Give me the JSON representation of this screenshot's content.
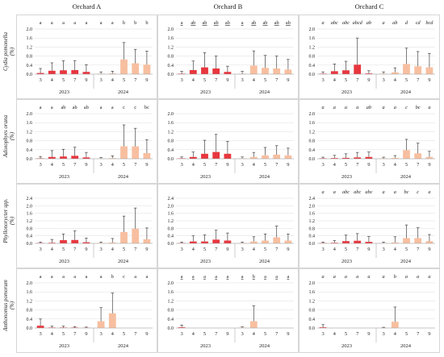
{
  "orchards": [
    "Orchard A",
    "Orchard B",
    "Orchard C"
  ],
  "species": [
    {
      "name": "Cydia pomonella",
      "unit": "(%)"
    },
    {
      "name": "Adoxophyes orana",
      "unit": "(%)"
    },
    {
      "name": "Phyllonorycter spp.",
      "unit": "(%)"
    },
    {
      "name": "Anthonomus pomorum",
      "unit": "(%)"
    }
  ],
  "years": [
    "2023",
    "2024"
  ],
  "x_categories": [
    "3",
    "4",
    "5",
    "7",
    "9",
    "3",
    "4",
    "5",
    "7",
    "9"
  ],
  "colors": {
    "2023": "#e8363e",
    "2024": "#f7bfa0",
    "error_bar": "#444444",
    "grid": "#dddddd",
    "border": "#bbbbbb"
  },
  "chart_data": {
    "type": "bar",
    "layout": "grid 4 rows (species) x 3 columns (orchards)",
    "y_tick_labels": [
      "0.0",
      "0.4",
      "0.8",
      "1.2",
      "1.6",
      "2.0",
      "2.4"
    ],
    "panels": [
      {
        "species": "Cydia pomonella",
        "orchard": "Orchard A",
        "ylim": [
          0,
          2.0
        ],
        "letters": [
          "a",
          "a",
          "a",
          "a",
          "a",
          "a",
          "a",
          "b",
          "b",
          "b"
        ],
        "letter_style": "normal",
        "values": [
          0.05,
          0.15,
          0.17,
          0.18,
          0.1,
          0.02,
          0.03,
          0.65,
          0.48,
          0.42
        ],
        "errors": [
          0.2,
          0.35,
          0.42,
          0.42,
          0.32,
          0.08,
          0.1,
          0.75,
          0.62,
          0.6
        ]
      },
      {
        "species": "Cydia pomonella",
        "orchard": "Orchard B",
        "ylim": [
          0,
          2.0
        ],
        "letters": [
          "a",
          "ab",
          "ab",
          "ab",
          "ab",
          "a",
          "ab",
          "ab",
          "ab",
          "ab"
        ],
        "letter_style": "underline",
        "values": [
          0.02,
          0.18,
          0.3,
          0.25,
          0.1,
          0.02,
          0.38,
          0.28,
          0.25,
          0.2
        ],
        "errors": [
          0.1,
          0.4,
          0.65,
          0.55,
          0.25,
          0.1,
          0.65,
          0.55,
          0.55,
          0.45
        ]
      },
      {
        "species": "Cydia pomonella",
        "orchard": "Orchard C",
        "ylim": [
          0,
          2.0
        ],
        "letters": [
          "a",
          "abc",
          "abc",
          "abcd",
          "ab",
          "a",
          "ab",
          "d",
          "cd",
          "bcd"
        ],
        "letter_style": "italic",
        "values": [
          0.02,
          0.13,
          0.17,
          0.42,
          0.03,
          0.02,
          0.08,
          0.45,
          0.35,
          0.3
        ],
        "errors": [
          0.08,
          0.32,
          0.4,
          1.18,
          0.12,
          0.08,
          0.2,
          0.7,
          0.65,
          0.62
        ]
      },
      {
        "species": "Adoxophyes orana",
        "orchard": "Orchard A",
        "ylim": [
          0,
          2.0
        ],
        "letters": [
          "a",
          "a",
          "ab",
          "ab",
          "ab",
          "a",
          "a",
          "c",
          "c",
          "bc"
        ],
        "letter_style": "normal",
        "values": [
          0.02,
          0.08,
          0.1,
          0.13,
          0.06,
          0.01,
          0.03,
          0.55,
          0.55,
          0.25
        ],
        "errors": [
          0.08,
          0.28,
          0.32,
          0.38,
          0.22,
          0.05,
          0.1,
          0.95,
          0.8,
          0.6
        ]
      },
      {
        "species": "Adoxophyes orana",
        "orchard": "Orchard B",
        "ylim": [
          0,
          2.0
        ],
        "letters": [
          "",
          "",
          "",
          "",
          "",
          "",
          "",
          "",
          "",
          ""
        ],
        "letter_style": "none",
        "values": [
          0.02,
          0.08,
          0.22,
          0.3,
          0.22,
          0.02,
          0.08,
          0.15,
          0.18,
          0.15
        ],
        "errors": [
          0.06,
          0.22,
          0.6,
          0.78,
          0.55,
          0.06,
          0.2,
          0.35,
          0.4,
          0.32
        ]
      },
      {
        "species": "Adoxophyes orana",
        "orchard": "Orchard C",
        "ylim": [
          0,
          2.0
        ],
        "letters": [
          "a",
          "a",
          "a",
          "a",
          "ab",
          "a",
          "a",
          "c",
          "bc",
          "a"
        ],
        "letter_style": "italic",
        "values": [
          0.02,
          0.03,
          0.04,
          0.06,
          0.08,
          0.02,
          0.04,
          0.38,
          0.24,
          0.08
        ],
        "errors": [
          0.05,
          0.12,
          0.18,
          0.22,
          0.22,
          0.05,
          0.1,
          0.48,
          0.45,
          0.25
        ]
      },
      {
        "species": "Phyllonorycter spp.",
        "orchard": "Orchard A",
        "ylim": [
          0,
          2.4
        ],
        "letters": [
          "",
          "",
          "",
          "",
          "",
          "",
          "",
          "",
          "",
          ""
        ],
        "letter_style": "none",
        "values": [
          0.02,
          0.03,
          0.17,
          0.18,
          0.06,
          0.02,
          0.04,
          0.6,
          0.78,
          0.22
        ],
        "errors": [
          0.05,
          0.18,
          0.33,
          0.48,
          0.22,
          0.05,
          0.22,
          0.85,
          1.1,
          0.6
        ]
      },
      {
        "species": "Phyllonorycter spp.",
        "orchard": "Orchard B",
        "ylim": [
          0,
          2.4
        ],
        "letters": [
          "",
          "",
          "",
          "",
          "",
          "",
          "",
          "",
          "",
          ""
        ],
        "letter_style": "none",
        "values": [
          0.02,
          0.1,
          0.1,
          0.2,
          0.15,
          0.02,
          0.1,
          0.15,
          0.32,
          0.15
        ],
        "errors": [
          0.05,
          0.3,
          0.35,
          0.5,
          0.4,
          0.05,
          0.25,
          0.35,
          0.6,
          0.35
        ]
      },
      {
        "species": "Phyllonorycter spp.",
        "orchard": "Orchard C",
        "ylim": [
          0,
          2.4
        ],
        "letters": [
          "a",
          "a",
          "abc",
          "abc",
          "abc",
          "a",
          "a",
          "bc",
          "c",
          "a"
        ],
        "letter_style": "italic",
        "values": [
          0.02,
          0.03,
          0.12,
          0.14,
          0.08,
          0.02,
          0.05,
          0.28,
          0.28,
          0.12
        ],
        "errors": [
          0.05,
          0.12,
          0.32,
          0.38,
          0.28,
          0.05,
          0.3,
          0.7,
          0.55,
          0.35
        ]
      },
      {
        "species": "Anthonomus pomorum",
        "orchard": "Orchard A",
        "ylim": [
          0,
          2.0
        ],
        "letters": [
          "a",
          "a",
          "a",
          "a",
          "a",
          "a",
          "b",
          "c",
          "a",
          "a"
        ],
        "letter_style": "normal",
        "values": [
          0.1,
          0.02,
          0.02,
          0.02,
          0.01,
          0.3,
          0.65,
          0.0,
          0.0,
          0.0
        ],
        "errors": [
          0.3,
          0.06,
          0.06,
          0.04,
          0.03,
          0.6,
          0.9,
          0.0,
          0.0,
          0.0
        ]
      },
      {
        "species": "Anthonomus pomorum",
        "orchard": "Orchard B",
        "ylim": [
          0,
          2.0
        ],
        "letters": [
          "a",
          "a",
          "a",
          "a",
          "a",
          "a",
          "b",
          "a",
          "a",
          "a"
        ],
        "letter_style": "underline",
        "values": [
          0.03,
          0.0,
          0.0,
          0.0,
          0.0,
          0.02,
          0.3,
          0.0,
          0.0,
          0.0
        ],
        "errors": [
          0.1,
          0.0,
          0.0,
          0.0,
          0.0,
          0.03,
          0.68,
          0.0,
          0.0,
          0.0
        ]
      },
      {
        "species": "Anthonomus pomorum",
        "orchard": "Orchard C",
        "ylim": [
          0,
          2.0
        ],
        "letters": [
          "a",
          "a",
          "a",
          "a",
          "a",
          "a",
          "b",
          "a",
          "a",
          "a"
        ],
        "letter_style": "italic",
        "values": [
          0.03,
          0.0,
          0.0,
          0.0,
          0.0,
          0.01,
          0.28,
          0.0,
          0.0,
          0.0
        ],
        "errors": [
          0.12,
          0.0,
          0.0,
          0.0,
          0.0,
          0.02,
          0.65,
          0.0,
          0.0,
          0.0
        ]
      }
    ]
  }
}
